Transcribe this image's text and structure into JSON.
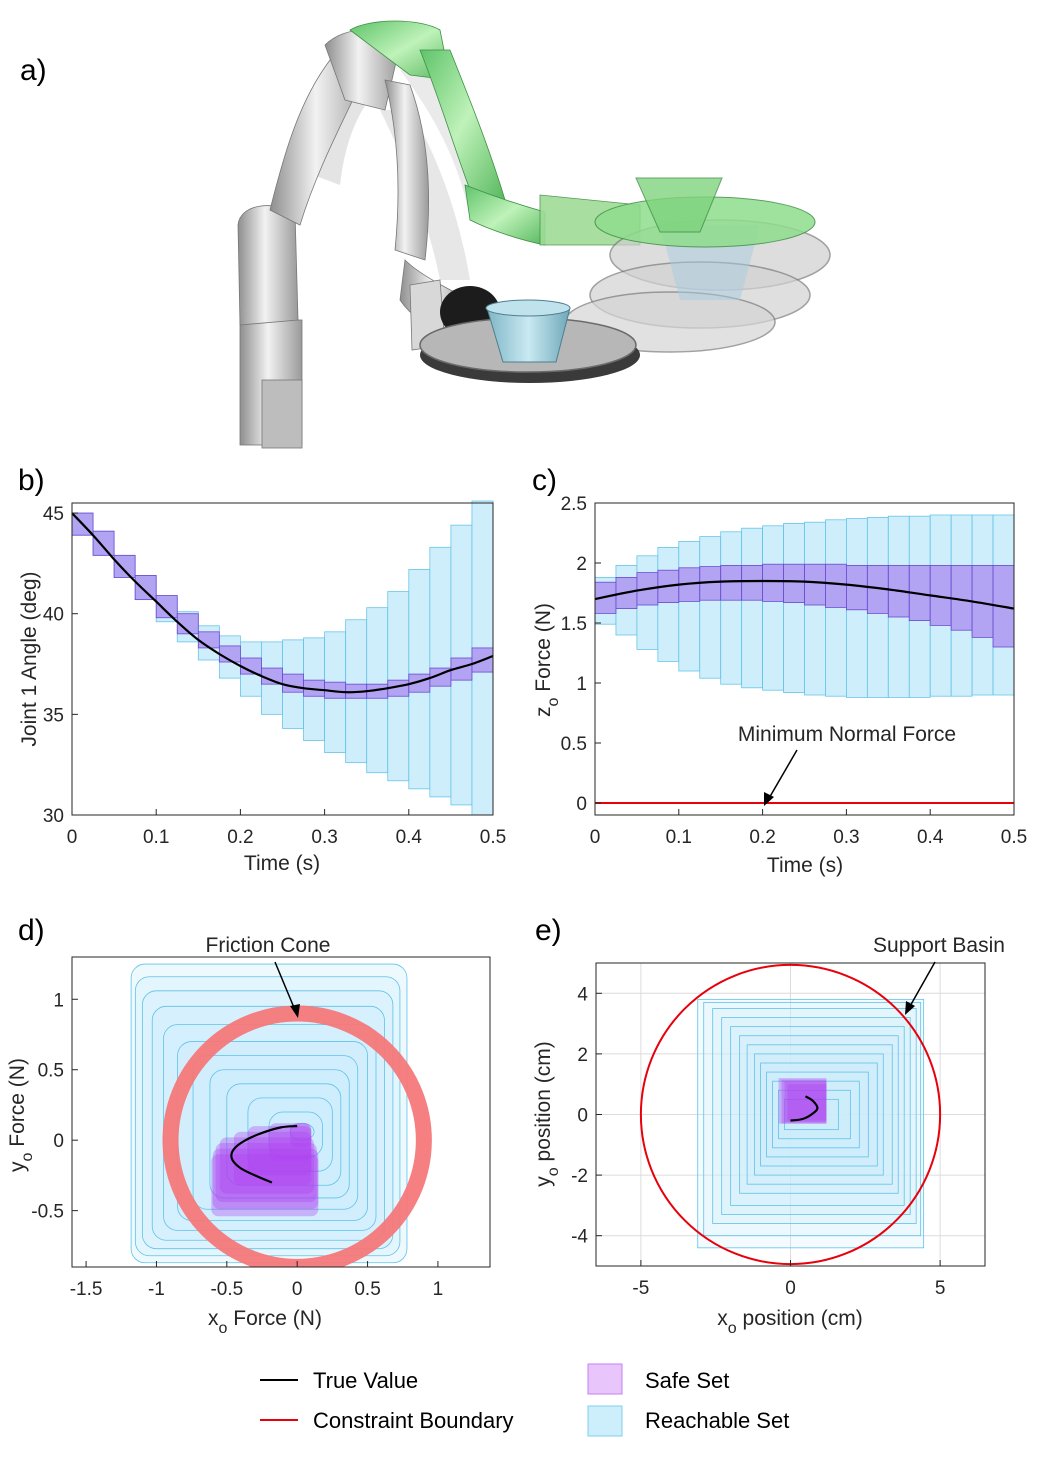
{
  "panels": {
    "a": {
      "letter": "a)"
    },
    "b": {
      "letter": "b)"
    },
    "c": {
      "letter": "c)"
    },
    "d": {
      "letter": "d)"
    },
    "e": {
      "letter": "e)"
    }
  },
  "colors": {
    "true_value": "#000000",
    "constraint": "#e8000b",
    "safe_fill": "#a98bf0",
    "safe_stroke": "#6a4ad0",
    "reach_fill": "#cdeefb",
    "reach_stroke": "#5fc2e8",
    "friction_ring": "#f4787a",
    "safe_purple_d": "#b042f2"
  },
  "legend": {
    "true_value": "True Value",
    "constraint_boundary": "Constraint Boundary",
    "safe_set": "Safe Set",
    "reachable_set": "Reachable Set"
  },
  "chart_data": [
    {
      "panel": "b",
      "type": "line",
      "xlabel": "Time (s)",
      "ylabel": "Joint 1 Angle (deg)",
      "xlim": [
        0,
        0.5
      ],
      "ylim": [
        30,
        45.5
      ],
      "xticks": [
        "0",
        "0.1",
        "0.2",
        "0.3",
        "0.4",
        "0.5"
      ],
      "yticks": [
        "30",
        "35",
        "40",
        "45"
      ],
      "true_value": {
        "x": [
          0,
          0.025,
          0.05,
          0.075,
          0.1,
          0.125,
          0.15,
          0.175,
          0.2,
          0.225,
          0.25,
          0.275,
          0.3,
          0.325,
          0.35,
          0.375,
          0.4,
          0.425,
          0.45,
          0.475,
          0.5
        ],
        "y": [
          45.0,
          43.9,
          42.7,
          41.6,
          40.6,
          39.6,
          38.7,
          38.0,
          37.4,
          36.9,
          36.5,
          36.3,
          36.2,
          36.1,
          36.15,
          36.3,
          36.5,
          36.8,
          37.2,
          37.5,
          37.9
        ]
      },
      "reachable_set": {
        "t_start": [
          0,
          0.025,
          0.05,
          0.075,
          0.1,
          0.125,
          0.15,
          0.175,
          0.2,
          0.225,
          0.25,
          0.275,
          0.3,
          0.325,
          0.35,
          0.375,
          0.4,
          0.425,
          0.45,
          0.475
        ],
        "low": [
          43.9,
          42.9,
          41.8,
          40.7,
          39.6,
          38.6,
          37.7,
          36.8,
          35.9,
          35.0,
          34.3,
          33.7,
          33.1,
          32.6,
          32.1,
          31.7,
          31.3,
          30.9,
          30.5,
          30.0
        ],
        "high": [
          45.0,
          44.1,
          42.9,
          41.9,
          40.9,
          40.1,
          39.4,
          38.9,
          38.6,
          38.6,
          38.7,
          38.8,
          39.1,
          39.7,
          40.3,
          41.1,
          42.2,
          43.3,
          44.4,
          45.6
        ]
      },
      "safe_set": {
        "t_start": [
          0,
          0.025,
          0.05,
          0.075,
          0.1,
          0.125,
          0.15,
          0.175,
          0.2,
          0.225,
          0.25,
          0.275,
          0.3,
          0.325,
          0.35,
          0.375,
          0.4,
          0.425,
          0.45,
          0.475
        ],
        "low": [
          43.9,
          42.9,
          41.8,
          40.7,
          39.8,
          39.0,
          38.3,
          37.6,
          37.0,
          36.5,
          36.1,
          35.9,
          35.8,
          35.8,
          35.8,
          35.9,
          36.1,
          36.4,
          36.7,
          37.1
        ],
        "high": [
          45.0,
          44.1,
          42.9,
          41.9,
          40.9,
          40.0,
          39.1,
          38.4,
          37.8,
          37.3,
          37.0,
          36.7,
          36.6,
          36.5,
          36.5,
          36.7,
          37.0,
          37.3,
          37.8,
          38.3
        ]
      }
    },
    {
      "panel": "c",
      "type": "line",
      "xlabel": "Time (s)",
      "ylabel": "z_o Force (N)",
      "ylabel_main": "z",
      "ylabel_sub": "o",
      "ylabel_rest": " Force (N)",
      "xlim": [
        0,
        0.5
      ],
      "ylim": [
        -0.1,
        2.5
      ],
      "xticks": [
        "0",
        "0.1",
        "0.2",
        "0.3",
        "0.4",
        "0.5"
      ],
      "yticks": [
        "0",
        "0.5",
        "1",
        "1.5",
        "2",
        "2.5"
      ],
      "annotation": "Minimum Normal Force",
      "constraint_value": 0,
      "true_value": {
        "x": [
          0,
          0.05,
          0.1,
          0.15,
          0.2,
          0.25,
          0.3,
          0.35,
          0.4,
          0.45,
          0.5
        ],
        "y": [
          1.7,
          1.77,
          1.82,
          1.845,
          1.85,
          1.845,
          1.82,
          1.78,
          1.73,
          1.68,
          1.62
        ]
      },
      "reachable_set": {
        "t_start": [
          0,
          0.025,
          0.05,
          0.075,
          0.1,
          0.125,
          0.15,
          0.175,
          0.2,
          0.225,
          0.25,
          0.275,
          0.3,
          0.325,
          0.35,
          0.375,
          0.4,
          0.425,
          0.45,
          0.475
        ],
        "low": [
          1.49,
          1.4,
          1.28,
          1.18,
          1.1,
          1.04,
          0.99,
          0.96,
          0.94,
          0.92,
          0.9,
          0.89,
          0.88,
          0.88,
          0.88,
          0.88,
          0.89,
          0.89,
          0.9,
          0.9
        ],
        "high": [
          1.88,
          1.98,
          2.06,
          2.13,
          2.18,
          2.22,
          2.26,
          2.29,
          2.31,
          2.33,
          2.34,
          2.36,
          2.37,
          2.38,
          2.39,
          2.39,
          2.4,
          2.4,
          2.4,
          2.4
        ]
      },
      "safe_set": {
        "t_start": [
          0,
          0.025,
          0.05,
          0.075,
          0.1,
          0.125,
          0.15,
          0.175,
          0.2,
          0.225,
          0.25,
          0.275,
          0.3,
          0.325,
          0.35,
          0.375,
          0.4,
          0.425,
          0.45,
          0.475
        ],
        "low": [
          1.58,
          1.62,
          1.65,
          1.67,
          1.68,
          1.69,
          1.69,
          1.69,
          1.68,
          1.67,
          1.65,
          1.63,
          1.61,
          1.58,
          1.55,
          1.52,
          1.48,
          1.44,
          1.38,
          1.3
        ],
        "high": [
          1.84,
          1.88,
          1.92,
          1.94,
          1.96,
          1.97,
          1.98,
          1.98,
          1.99,
          1.99,
          1.99,
          1.99,
          1.98,
          1.98,
          1.98,
          1.98,
          1.98,
          1.98,
          1.98,
          1.98
        ]
      }
    },
    {
      "panel": "d",
      "type": "scatter",
      "xlabel": "x_o Force (N)",
      "xlabel_main": "x",
      "xlabel_sub": "o",
      "xlabel_rest": " Force (N)",
      "ylabel": "y_o Force (N)",
      "ylabel_main": "y",
      "ylabel_sub": "o",
      "ylabel_rest": " Force (N)",
      "xlim": [
        -1.6,
        1.37
      ],
      "ylim": [
        -0.9,
        1.3
      ],
      "xticks": [
        "-1.5",
        "-1",
        "-0.5",
        "0",
        "0.5",
        "1"
      ],
      "yticks": [
        "-0.5",
        "0",
        "0.5",
        "1"
      ],
      "annotation": "Friction Cone",
      "friction_cone_radius": 0.9,
      "true_value": {
        "x": [
          0.0,
          -0.12,
          -0.28,
          -0.4,
          -0.46,
          -0.46,
          -0.4,
          -0.3,
          -0.18
        ],
        "y": [
          0.1,
          0.09,
          0.04,
          -0.02,
          -0.08,
          -0.14,
          -0.2,
          -0.25,
          -0.3
        ]
      },
      "reachable_set": {
        "x_low": [
          -0.05,
          -0.2,
          -0.35,
          -0.5,
          -0.62,
          -0.74,
          -0.85,
          -0.95,
          -1.03,
          -1.1,
          -1.15,
          -1.18
        ],
        "x_high": [
          0.12,
          0.18,
          0.25,
          0.31,
          0.37,
          0.43,
          0.5,
          0.56,
          0.62,
          0.68,
          0.73,
          0.78
        ],
        "y_low": [
          0.0,
          -0.12,
          -0.22,
          -0.32,
          -0.41,
          -0.49,
          -0.57,
          -0.64,
          -0.71,
          -0.77,
          -0.82,
          -0.87
        ],
        "y_high": [
          0.12,
          0.2,
          0.3,
          0.4,
          0.5,
          0.6,
          0.7,
          0.82,
          0.95,
          1.06,
          1.16,
          1.25
        ]
      },
      "safe_set": {
        "x_low": [
          -0.05,
          -0.2,
          -0.35,
          -0.45,
          -0.55,
          -0.58,
          -0.6,
          -0.61
        ],
        "x_high": [
          0.1,
          0.1,
          0.1,
          0.1,
          0.12,
          0.14,
          0.15,
          0.15
        ],
        "y_low": [
          -0.05,
          -0.15,
          -0.25,
          -0.32,
          -0.38,
          -0.44,
          -0.49,
          -0.54
        ],
        "y_high": [
          0.12,
          0.12,
          0.1,
          0.06,
          0.02,
          -0.02,
          -0.06,
          -0.1
        ]
      }
    },
    {
      "panel": "e",
      "type": "scatter",
      "xlabel": "x_o position (cm)",
      "xlabel_main": "x",
      "xlabel_sub": "o",
      "xlabel_rest": " position (cm)",
      "ylabel": "y_o position (cm)",
      "ylabel_main": "y",
      "ylabel_sub": "o",
      "ylabel_rest": " position (cm)",
      "xlim": [
        -6.5,
        6.5
      ],
      "ylim": [
        -5,
        5
      ],
      "xticks": [
        "-5",
        "0",
        "5"
      ],
      "yticks": [
        "-4",
        "-2",
        "0",
        "2",
        "4"
      ],
      "grid": true,
      "annotation": "Support Basin",
      "support_basin_radius": 5,
      "true_value": {
        "x": [
          0.0,
          0.4,
          0.7,
          0.9,
          0.75,
          0.5
        ],
        "y": [
          -0.2,
          -0.15,
          0.0,
          0.2,
          0.45,
          0.6
        ]
      },
      "reachable_set": {
        "x_low": [
          -0.2,
          -0.4,
          -0.6,
          -0.8,
          -1.0,
          -1.2,
          -1.45,
          -1.7,
          -2.0,
          -2.3,
          -2.6,
          -2.9,
          -3.1
        ],
        "x_high": [
          1.6,
          2.0,
          2.3,
          2.6,
          2.9,
          3.1,
          3.4,
          3.6,
          3.8,
          4.0,
          4.2,
          4.35,
          4.45
        ],
        "y_low": [
          -0.5,
          -0.8,
          -1.1,
          -1.4,
          -1.7,
          -2.0,
          -2.3,
          -2.6,
          -3.0,
          -3.3,
          -3.6,
          -4.0,
          -4.4
        ],
        "y_high": [
          0.5,
          0.8,
          1.1,
          1.4,
          1.7,
          2.0,
          2.3,
          2.6,
          2.9,
          3.2,
          3.5,
          3.7,
          3.8
        ]
      },
      "safe_set": {
        "x_low": [
          -0.1,
          -0.2,
          -0.3,
          -0.4
        ],
        "x_high": [
          1.2,
          1.2,
          1.2,
          1.2
        ],
        "y_low": [
          -0.2,
          -0.25,
          -0.3,
          -0.3
        ],
        "y_high": [
          1.0,
          1.1,
          1.15,
          1.2
        ]
      }
    }
  ]
}
